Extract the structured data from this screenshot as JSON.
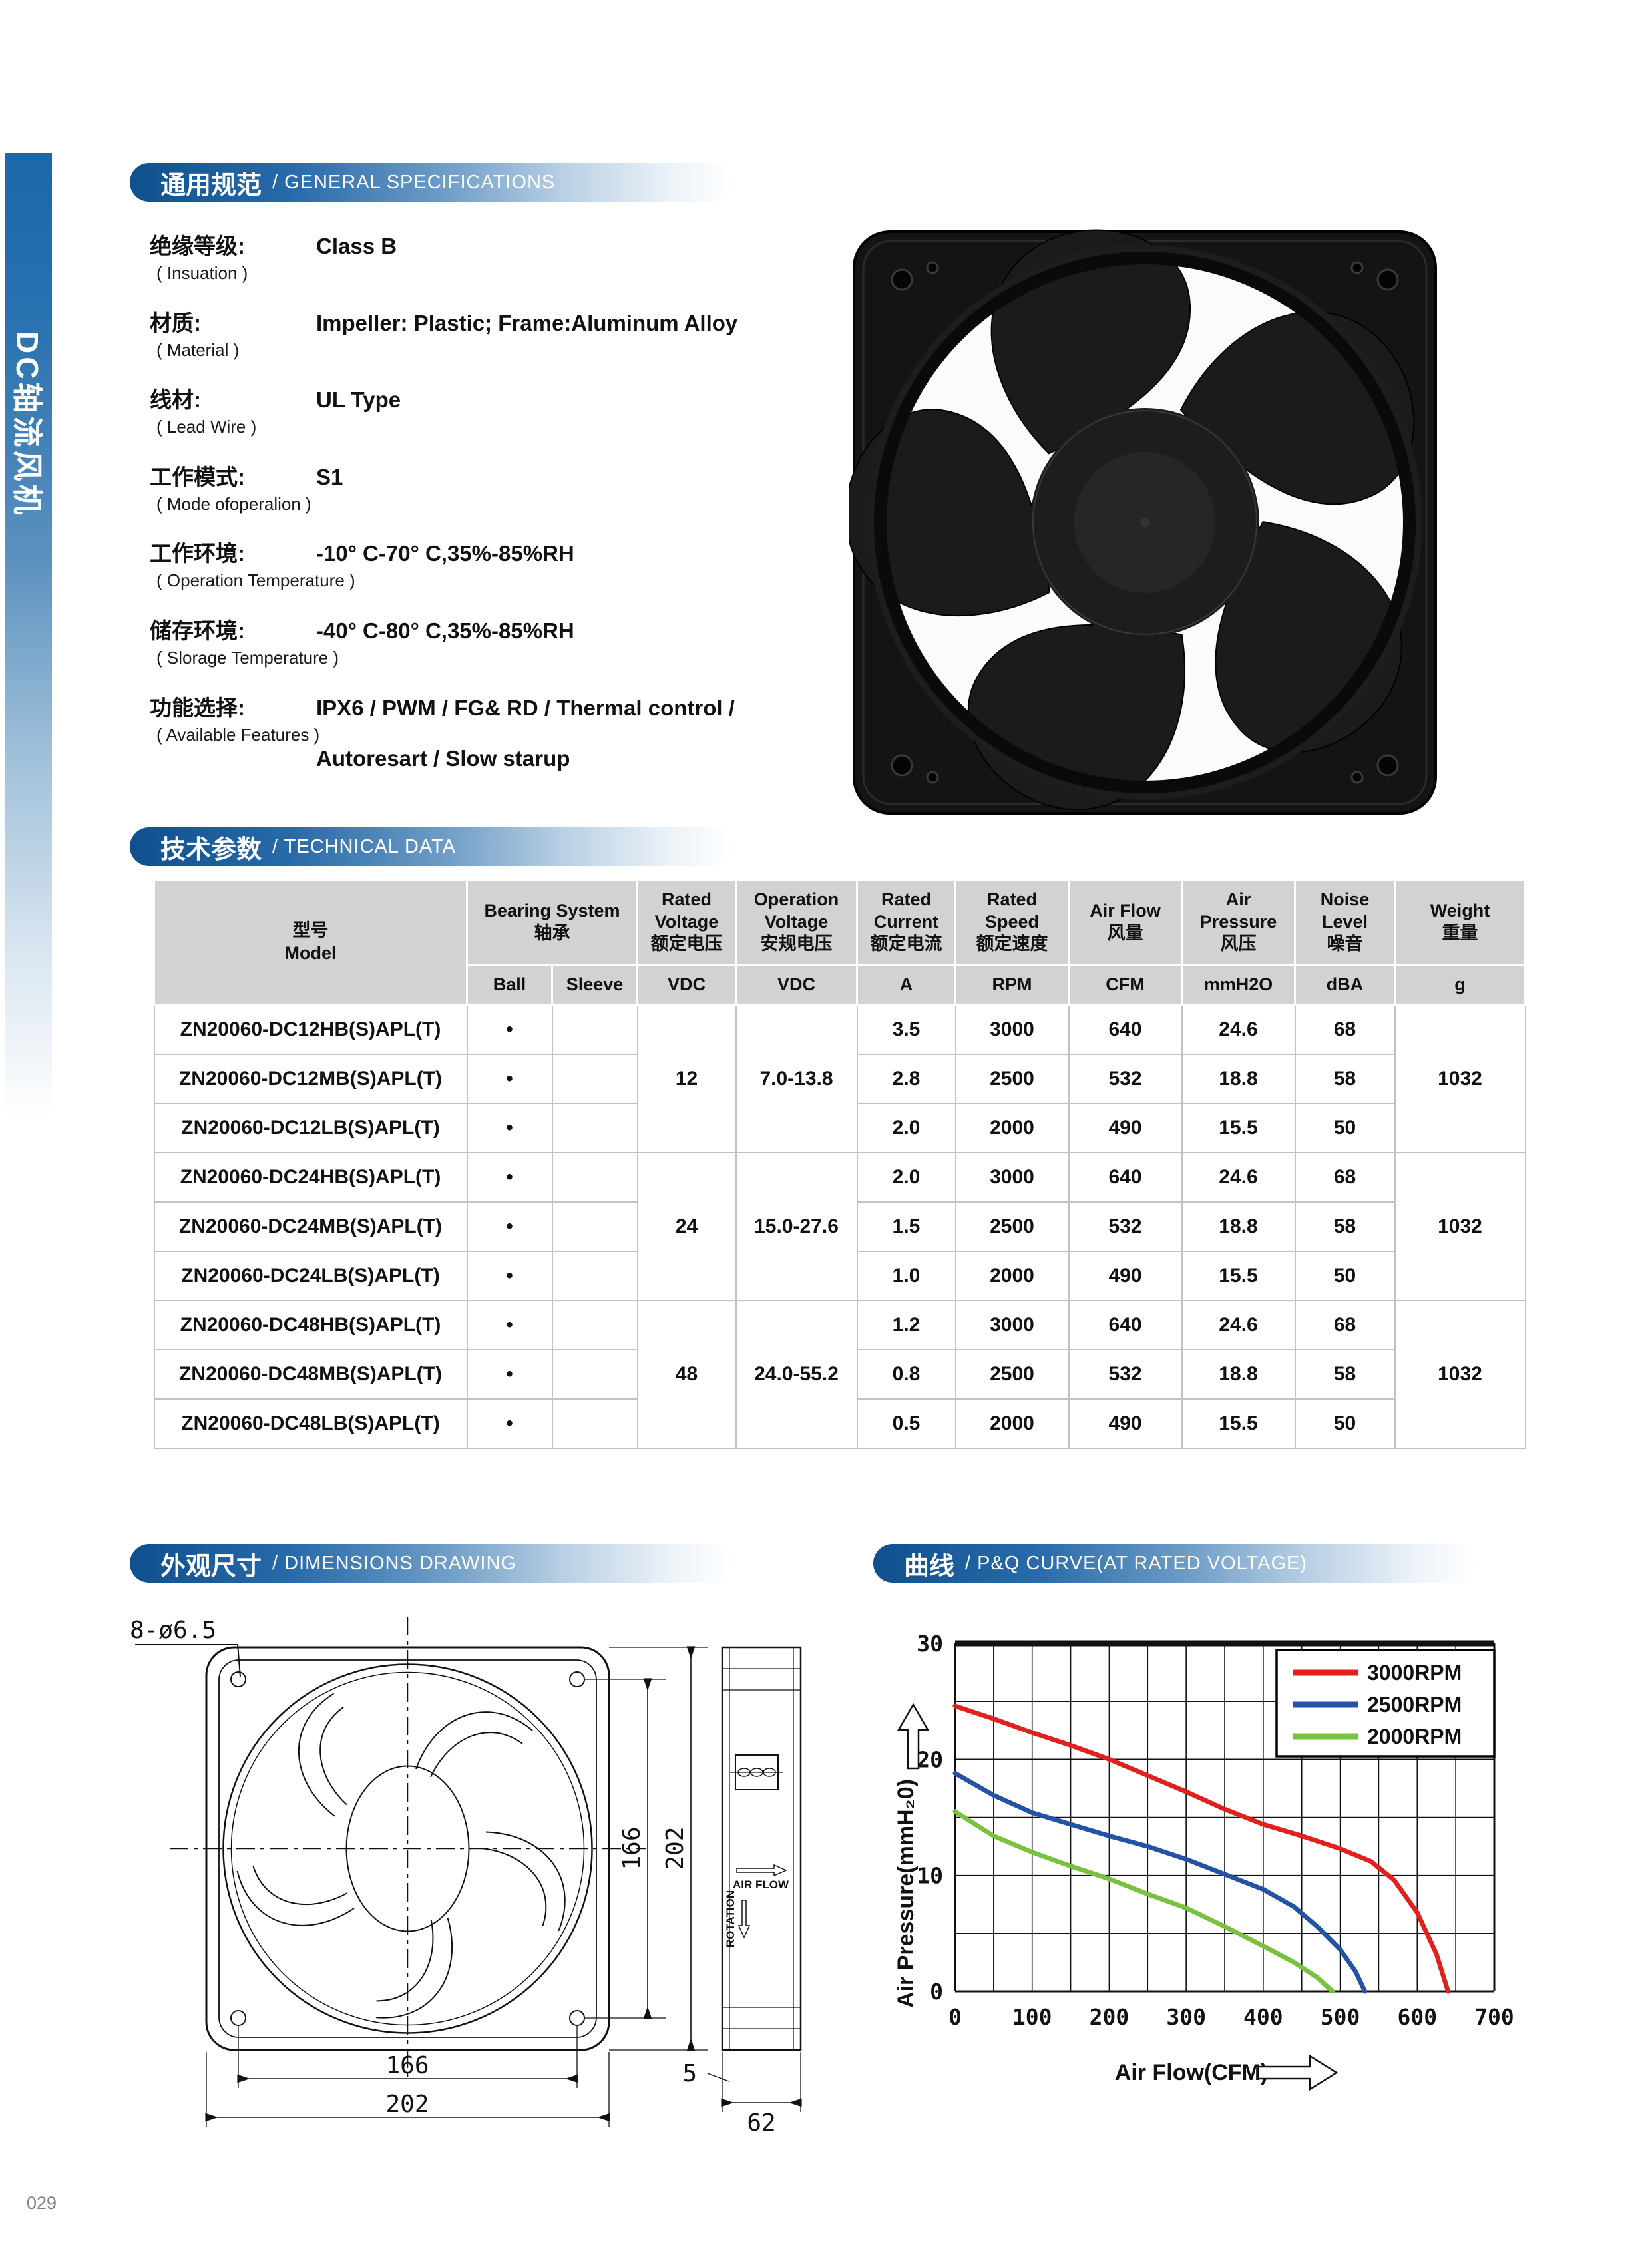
{
  "page": {
    "number": "029"
  },
  "sidebar": {
    "label": "DC轴流风机"
  },
  "sections": {
    "general": {
      "title_zh": "通用规范",
      "title_en": "/ GENERAL SPECIFICATIONS"
    },
    "technical": {
      "title_zh": "技术参数",
      "title_en": "/ TECHNICAL DATA"
    },
    "dimensions": {
      "title_zh": "外观尺寸",
      "title_en": "/ DIMENSIONS DRAWING"
    },
    "curve": {
      "title_zh": "曲线",
      "title_en": "/ P&Q CURVE(AT RATED VOLTAGE)"
    }
  },
  "specs": [
    {
      "zh": "绝缘等级:",
      "en": "( Insuation )",
      "value": "Class B"
    },
    {
      "zh": "材质:",
      "en": "( Material )",
      "value": "Impeller: Plastic; Frame:Aluminum Alloy"
    },
    {
      "zh": "线材:",
      "en": "( Lead Wire )",
      "value": "UL Type"
    },
    {
      "zh": "工作模式:",
      "en": "( Mode ofoperalion )",
      "value": "S1"
    },
    {
      "zh": "工作环境:",
      "en": "( Operation Temperature )",
      "value": "-10° C-70° C,35%-85%RH"
    },
    {
      "zh": "储存环境:",
      "en": "( Slorage Temperature )",
      "value": "-40° C-80° C,35%-85%RH"
    },
    {
      "zh": "功能选择:",
      "en": "( Available Features )",
      "value": "IPX6 / PWM / FG& RD / Thermal control /",
      "value2": "Autoresart / Slow starup"
    }
  ],
  "table": {
    "header": {
      "model": "型号\nModel",
      "bearing": "Bearing System\n轴承",
      "rated_voltage": "Rated\nVoltage\n额定电压",
      "operation_voltage": "Operation\nVoltage\n安规电压",
      "rated_current": "Rated\nCurrent\n额定电流",
      "rated_speed": "Rated\nSpeed\n额定速度",
      "air_flow": "Air Flow\n风量",
      "air_pressure": "Air\nPressure\n风压",
      "noise_level": "Noise\nLevel\n噪音",
      "weight": "Weight\n重量",
      "ball": "Ball",
      "sleeve": "Sleeve",
      "u_vdc1": "VDC",
      "u_vdc2": "VDC",
      "u_a": "A",
      "u_rpm": "RPM",
      "u_cfm": "CFM",
      "u_mmh2o": "mmH2O",
      "u_dba": "dBA",
      "u_g": "g"
    },
    "groups": [
      {
        "voltage": "12",
        "op_voltage": "7.0-13.8",
        "weight": "1032"
      },
      {
        "voltage": "24",
        "op_voltage": "15.0-27.6",
        "weight": "1032"
      },
      {
        "voltage": "48",
        "op_voltage": "24.0-55.2",
        "weight": "1032"
      }
    ],
    "rows": [
      {
        "model": "ZN20060-DC12HB(S)APL(T)",
        "ball": "•",
        "sleeve": "",
        "current": "3.5",
        "speed": "3000",
        "airflow": "640",
        "pressure": "24.6",
        "noise": "68"
      },
      {
        "model": "ZN20060-DC12MB(S)APL(T)",
        "ball": "•",
        "sleeve": "",
        "current": "2.8",
        "speed": "2500",
        "airflow": "532",
        "pressure": "18.8",
        "noise": "58"
      },
      {
        "model": "ZN20060-DC12LB(S)APL(T)",
        "ball": "•",
        "sleeve": "",
        "current": "2.0",
        "speed": "2000",
        "airflow": "490",
        "pressure": "15.5",
        "noise": "50"
      },
      {
        "model": "ZN20060-DC24HB(S)APL(T)",
        "ball": "•",
        "sleeve": "",
        "current": "2.0",
        "speed": "3000",
        "airflow": "640",
        "pressure": "24.6",
        "noise": "68"
      },
      {
        "model": "ZN20060-DC24MB(S)APL(T)",
        "ball": "•",
        "sleeve": "",
        "current": "1.5",
        "speed": "2500",
        "airflow": "532",
        "pressure": "18.8",
        "noise": "58"
      },
      {
        "model": "ZN20060-DC24LB(S)APL(T)",
        "ball": "•",
        "sleeve": "",
        "current": "1.0",
        "speed": "2000",
        "airflow": "490",
        "pressure": "15.5",
        "noise": "50"
      },
      {
        "model": "ZN20060-DC48HB(S)APL(T)",
        "ball": "•",
        "sleeve": "",
        "current": "1.2",
        "speed": "3000",
        "airflow": "640",
        "pressure": "24.6",
        "noise": "68"
      },
      {
        "model": "ZN20060-DC48MB(S)APL(T)",
        "ball": "•",
        "sleeve": "",
        "current": "0.8",
        "speed": "2500",
        "airflow": "532",
        "pressure": "18.8",
        "noise": "58"
      },
      {
        "model": "ZN20060-DC48LB(S)APL(T)",
        "ball": "•",
        "sleeve": "",
        "current": "0.5",
        "speed": "2000",
        "airflow": "490",
        "pressure": "15.5",
        "noise": "50"
      }
    ]
  },
  "drawing": {
    "hole_note": "8-ø6.5",
    "dim_height_inner": "166",
    "dim_height_outer": "202",
    "dim_width_inner": "166",
    "dim_width_outer": "202",
    "dim_flange": "5",
    "dim_depth": "62",
    "air_flow_label": "AIR FLOW",
    "rotation_label": "ROTATION"
  },
  "chart_data": {
    "type": "line",
    "title": "P&Q CURVE(AT RATED VOLTAGE)",
    "xlabel": "Air Flow(CFM)",
    "ylabel": "Air Pressure(mmH₂0)",
    "xlim": [
      0,
      700
    ],
    "ylim": [
      0,
      30
    ],
    "xticks": [
      0,
      100,
      200,
      300,
      400,
      500,
      600,
      700
    ],
    "yticks": [
      0,
      10,
      20,
      30
    ],
    "x_grid_step": 50,
    "y_grid_step": 5,
    "grid": true,
    "legend_position": "top-right",
    "series": [
      {
        "name": "3000RPM",
        "color": "#e0211d",
        "points": [
          [
            0,
            24.6
          ],
          [
            50,
            23.5
          ],
          [
            100,
            22.3
          ],
          [
            150,
            21.2
          ],
          [
            200,
            20.0
          ],
          [
            250,
            18.6
          ],
          [
            300,
            17.2
          ],
          [
            350,
            15.7
          ],
          [
            400,
            14.4
          ],
          [
            450,
            13.4
          ],
          [
            500,
            12.3
          ],
          [
            540,
            11.2
          ],
          [
            570,
            9.6
          ],
          [
            600,
            6.8
          ],
          [
            625,
            3.2
          ],
          [
            640,
            0
          ]
        ]
      },
      {
        "name": "2500RPM",
        "color": "#2453a6",
        "points": [
          [
            0,
            18.8
          ],
          [
            50,
            16.9
          ],
          [
            100,
            15.4
          ],
          [
            150,
            14.4
          ],
          [
            200,
            13.4
          ],
          [
            250,
            12.5
          ],
          [
            300,
            11.4
          ],
          [
            350,
            10.1
          ],
          [
            400,
            8.8
          ],
          [
            440,
            7.3
          ],
          [
            470,
            5.6
          ],
          [
            500,
            3.6
          ],
          [
            520,
            1.7
          ],
          [
            532,
            0
          ]
        ]
      },
      {
        "name": "2000RPM",
        "color": "#78c23f",
        "points": [
          [
            0,
            15.5
          ],
          [
            50,
            13.4
          ],
          [
            100,
            12.0
          ],
          [
            150,
            10.8
          ],
          [
            200,
            9.7
          ],
          [
            250,
            8.4
          ],
          [
            300,
            7.2
          ],
          [
            350,
            5.6
          ],
          [
            400,
            3.9
          ],
          [
            440,
            2.5
          ],
          [
            470,
            1.2
          ],
          [
            490,
            0
          ]
        ]
      }
    ]
  }
}
